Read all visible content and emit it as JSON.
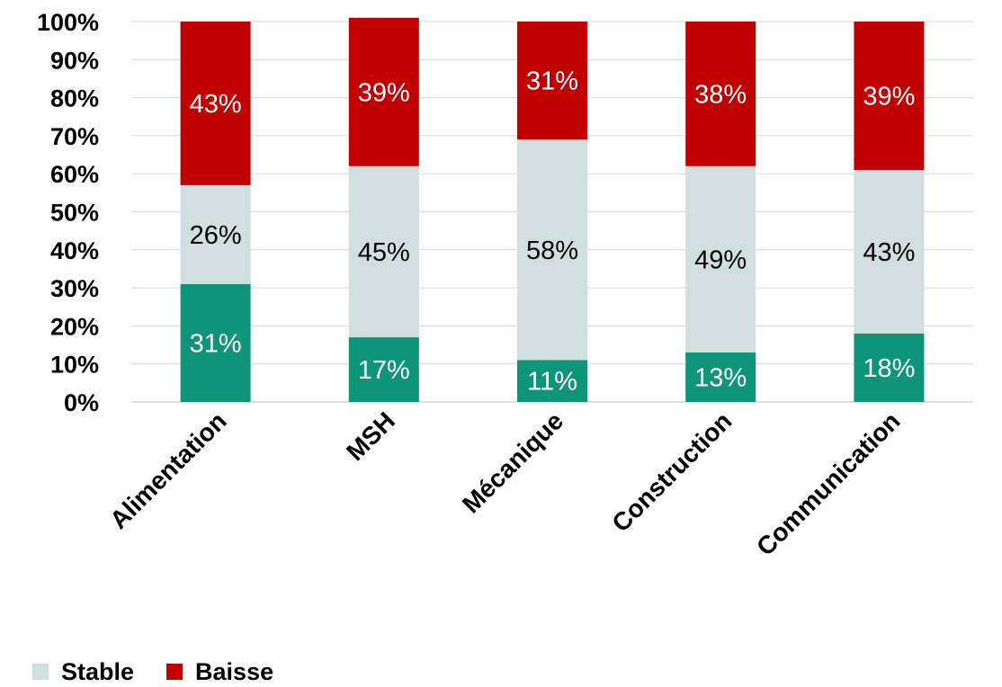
{
  "chart_data": {
    "type": "bar",
    "stacked": true,
    "categories": [
      "Alimentation",
      "MSH",
      "Mécanique",
      "Construction",
      "Communication"
    ],
    "series": [
      {
        "name": "",
        "color": "#0e9478",
        "values": [
          31,
          17,
          11,
          13,
          18
        ],
        "labels": [
          "31%",
          "17%",
          "11%",
          "13%",
          "18%"
        ],
        "label_color": "#ffffff"
      },
      {
        "name": "Stable",
        "color": "#d0e0df",
        "values": [
          26,
          45,
          58,
          49,
          43
        ],
        "labels": [
          "26%",
          "45%",
          "58%",
          "49%",
          "43%"
        ],
        "label_color": "#000000"
      },
      {
        "name": "Baisse",
        "color": "#c00000",
        "values": [
          43,
          39,
          31,
          38,
          39
        ],
        "labels": [
          "43%",
          "39%",
          "31%",
          "38%",
          "39%"
        ],
        "label_color": "#ffffff"
      }
    ],
    "y_ticks": [
      "0%",
      "10%",
      "20%",
      "30%",
      "40%",
      "50%",
      "60%",
      "70%",
      "80%",
      "90%",
      "100%"
    ],
    "ylim": [
      0,
      100
    ],
    "grid": true,
    "legend": {
      "placement": "bottom-left",
      "items": [
        {
          "label": "Stable",
          "color": "#d0e0df"
        },
        {
          "label": "Baisse",
          "color": "#c00000"
        }
      ]
    }
  }
}
